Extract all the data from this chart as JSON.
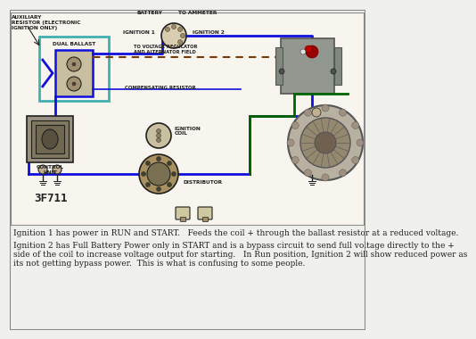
{
  "background_color": "#f0f0ec",
  "diagram_bg": "#e8e4dc",
  "caption_lines": [
    "Ignition 1 has power in RUN and START.   Feeds the coil + through the ballast resistor at a reduced voltage.",
    "",
    "Ignition 2 has Full Battery Power only in START and is a bypass circuit to send full voltage directly to the +",
    "side of the coil to increase voltage output for starting.   In Run position, Ignition 2 will show reduced power as",
    "its not getting bypass power.  This is what is confusing to some people."
  ],
  "caption_fontsize": 6.5,
  "labels": {
    "auxiliary_resistor": "AUXILIARY\nRESISTOR (ELECTRONIC\nIGNITION ONLY)",
    "dual_ballast": "DUAL BALLAST",
    "battery": "BATTERY",
    "to_ammeter": "TO AMMETER",
    "ignition1": "IGNITION 1",
    "ignition2": "IGNITION 2",
    "to_voltage": "TO VOLTAGE REGULATOR\nAND ALTERNATOR FIELD",
    "compensating": "COMPENSATING RESISTOR",
    "ignition_coil": "IGNITION\nCOIL",
    "distributor": "DISTRIBUTOR",
    "control_unit": "CONTROL\nUNIT",
    "code": "3F711"
  },
  "colors": {
    "blue": "#1010dd",
    "brown": "#7B3A0A",
    "green": "#006400",
    "cyan": "#40b0b0",
    "black": "#202020",
    "gray": "#888888",
    "red": "#cc0000",
    "white": "#ffffff",
    "light_gray": "#cccccc",
    "dark_gray": "#555555",
    "tan": "#c8b898",
    "metal": "#909888",
    "alt_body": "#b0a898",
    "vreg_body": "#9a9a90"
  }
}
